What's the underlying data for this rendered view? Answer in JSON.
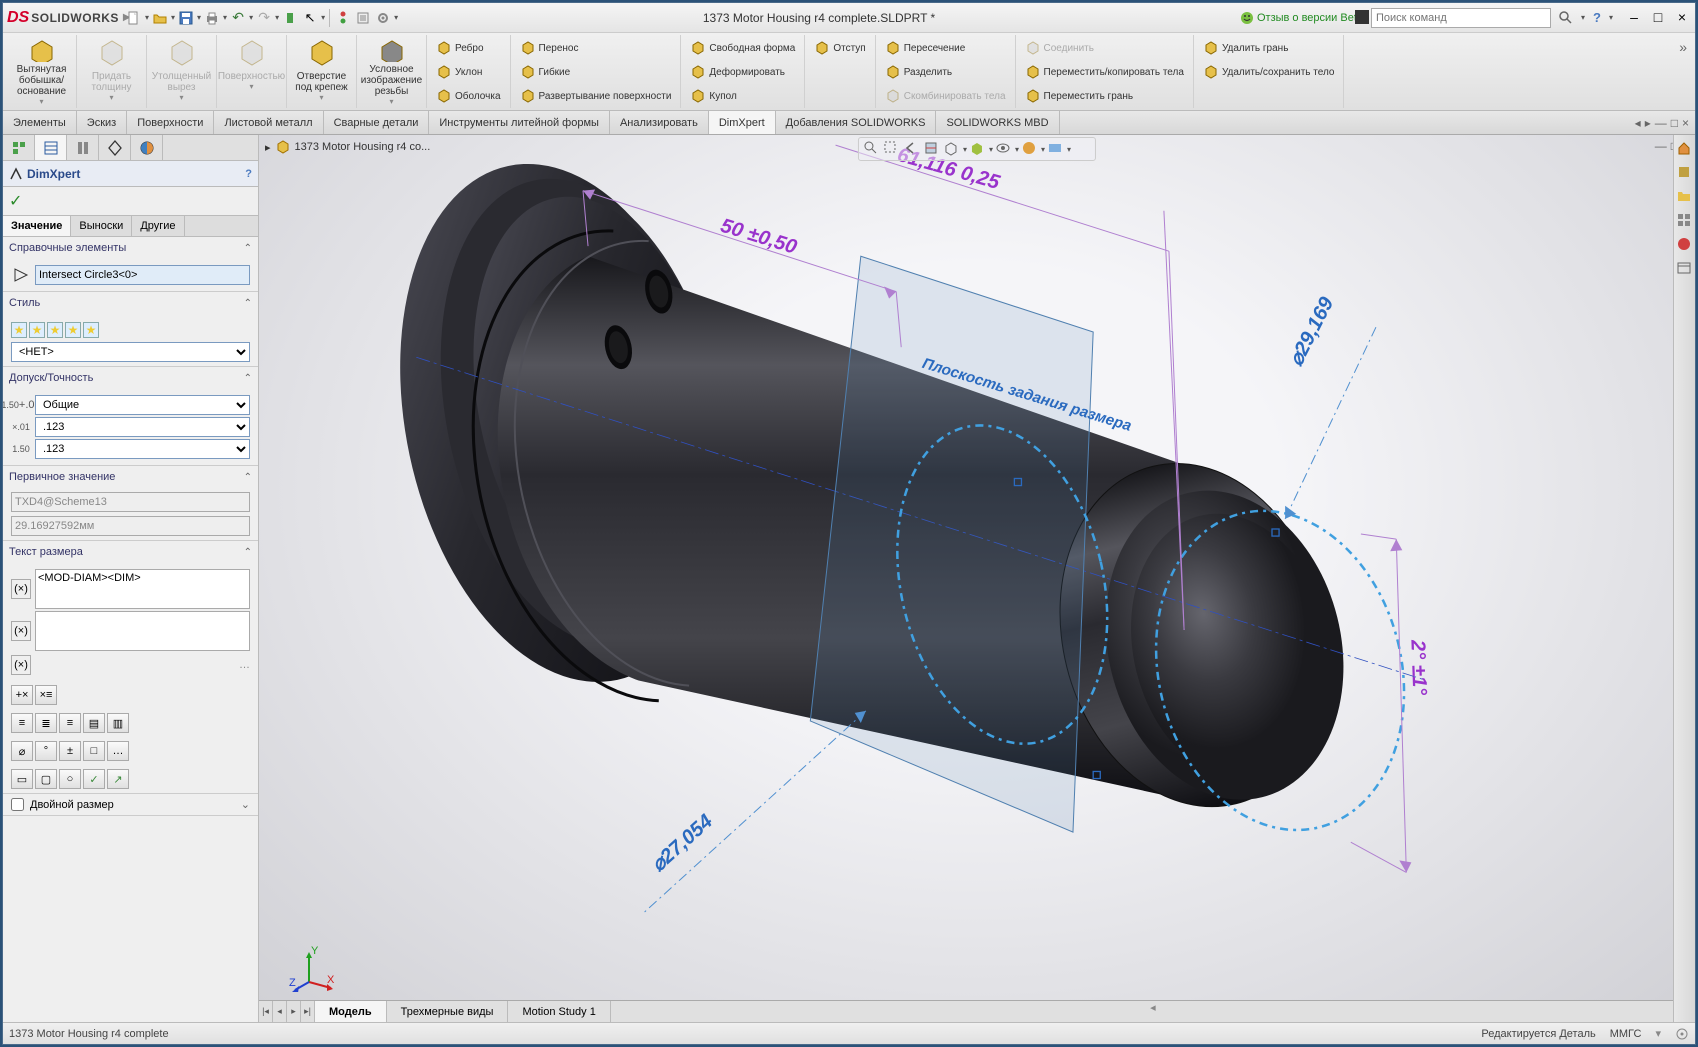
{
  "app": {
    "name": "SOLIDWORKS",
    "logo_s": "DS"
  },
  "title": "1373 Motor Housing r4 complete.SLDPRT *",
  "beta": "Отзыв о версии Beta",
  "search_placeholder": "Поиск команд",
  "ribbon": {
    "big": [
      {
        "label": "Вытянутая\nбобышка/основание",
        "icon": "#e6c04a"
      },
      {
        "label": "Придать\nтолщину",
        "icon": "#d0d0d0",
        "disabled": true
      },
      {
        "label": "Утолщенный\nвырез",
        "icon": "#d0d0d0",
        "disabled": true
      },
      {
        "label": "Поверхностью",
        "icon": "#d0d0d0",
        "disabled": true
      },
      {
        "label": "Отверстие\nпод крепеж",
        "icon": "#e6c04a"
      },
      {
        "label": "Условное\nизображение\nрезьбы",
        "icon": "#888"
      }
    ],
    "cols": [
      [
        {
          "t": "Ребро",
          "c": "#e6c04a"
        },
        {
          "t": "Уклон",
          "c": "#e6c04a"
        },
        {
          "t": "Оболочка",
          "c": "#e6c04a"
        }
      ],
      [
        {
          "t": "Перенос",
          "c": "#e6c04a"
        },
        {
          "t": "Гибкие",
          "c": "#e6c04a"
        },
        {
          "t": "Развертывание поверхности",
          "c": "#e6c04a"
        }
      ],
      [
        {
          "t": "Свободная форма",
          "c": "#e6c04a"
        },
        {
          "t": "Деформировать",
          "c": "#e6c04a"
        },
        {
          "t": "Купол",
          "c": "#e6c04a"
        }
      ],
      [
        {
          "t": "Отступ",
          "c": "#e6c04a"
        }
      ],
      [
        {
          "t": "Пересечение",
          "c": "#e6c04a"
        },
        {
          "t": "Разделить",
          "c": "#e6c04a"
        },
        {
          "t": "Скомбинировать тела",
          "c": "#d0d0d0",
          "d": true
        }
      ],
      [
        {
          "t": "Соединить",
          "c": "#d0d0d0",
          "d": true
        },
        {
          "t": "Переместить/копировать тела",
          "c": "#e6c04a"
        },
        {
          "t": "Переместить грань",
          "c": "#e6c04a"
        }
      ],
      [
        {
          "t": "Удалить грань",
          "c": "#e6c04a"
        },
        {
          "t": "Удалить/сохранить тело",
          "c": "#e6c04a"
        }
      ]
    ]
  },
  "cmdtabs": [
    "Элементы",
    "Эскиз",
    "Поверхности",
    "Листовой металл",
    "Сварные детали",
    "Инструменты литейной формы",
    "Анализировать",
    "DimXpert",
    "Добавления SOLIDWORKS",
    "SOLIDWORKS MBD"
  ],
  "cmdtabs_active": 7,
  "pm": {
    "name": "DimXpert",
    "subtabs": [
      "Значение",
      "Выноски",
      "Другие"
    ],
    "subtab_active": 0,
    "sections": {
      "ref": {
        "title": "Справочные элементы",
        "value": "Intersect Circle3<0>"
      },
      "style": {
        "title": "Стиль",
        "select": "<НЕТ>"
      },
      "tol": {
        "title": "Допуск/Точность",
        "type": "Общие",
        "v1": ".123",
        "v2": ".123"
      },
      "prim": {
        "title": "Первичное значение",
        "name": "TXD4@Scheme13",
        "val": "29.16927592мм"
      },
      "dimtext": {
        "title": "Текст размера",
        "val": "<MOD-DIAM><DIM>"
      },
      "dual": "Двойной размер"
    }
  },
  "crumb": "1373 Motor Housing r4 co...",
  "bottom_tabs": [
    "Модель",
    "Трехмерные виды",
    "Motion Study 1"
  ],
  "bottom_active": 0,
  "statusbar": {
    "left": "1373 Motor Housing r4 complete",
    "r1": "Редактируется Деталь",
    "r2": "ММГС"
  },
  "dims": {
    "d1": "50 ±0,50",
    "d2": "⌀29,169",
    "d3": "2° ±1°",
    "d4": "⌀27,054",
    "d5": "61,116 0,25",
    "plane": "Плоскость задания размера"
  },
  "colors": {
    "dim_purple": "#9933cc",
    "dim_blue": "#2a6abf",
    "model_dark": "#2a2a2e",
    "model_mid": "#44444a",
    "model_hl": "#707078",
    "sel_blue": "#40a0e0"
  }
}
